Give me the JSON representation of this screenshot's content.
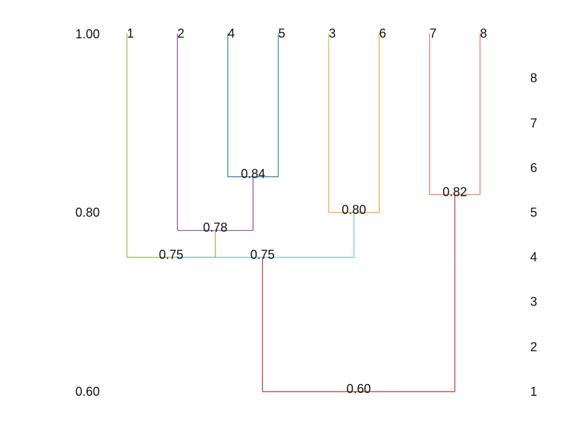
{
  "chart_data": {
    "type": "dendrogram",
    "similarity_axis": {
      "tick_labels": [
        "1.00",
        "0.80",
        "0.60"
      ],
      "ticks": [
        1.0,
        0.8,
        0.6
      ],
      "range": [
        0.6,
        1.0
      ]
    },
    "cluster_count_axis": {
      "tick_labels": [
        "8",
        "7",
        "6",
        "5",
        "4",
        "3",
        "2",
        "1"
      ]
    },
    "leaves": [
      {
        "id": "1",
        "label": "1"
      },
      {
        "id": "2",
        "label": "2"
      },
      {
        "id": "4",
        "label": "4"
      },
      {
        "id": "5",
        "label": "5"
      },
      {
        "id": "3",
        "label": "3"
      },
      {
        "id": "6",
        "label": "6"
      },
      {
        "id": "7",
        "label": "7"
      },
      {
        "id": "8",
        "label": "8"
      }
    ],
    "merges": [
      {
        "id": "m45",
        "left": "4",
        "right": "5",
        "similarity": 0.84,
        "label": "0.84",
        "color": "#2a7db8"
      },
      {
        "id": "m78",
        "left": "7",
        "right": "8",
        "similarity": 0.82,
        "label": "0.82",
        "color": "#e8735a"
      },
      {
        "id": "m36",
        "left": "3",
        "right": "6",
        "similarity": 0.8,
        "label": "0.80",
        "color": "#f0a830"
      },
      {
        "id": "m245",
        "left": "2",
        "right": "m45",
        "similarity": 0.78,
        "label": "0.78",
        "color": "#8e44ad"
      },
      {
        "id": "m1245",
        "left": "1",
        "right": "m245",
        "similarity": 0.75,
        "label": "0.75",
        "color": "#8fbf3a"
      },
      {
        "id": "m124536",
        "left": "m1245",
        "right": "m36",
        "similarity": 0.75,
        "label": "0.75",
        "color": "#6cc6e0"
      },
      {
        "id": "mall",
        "left": "m124536",
        "right": "m78",
        "similarity": 0.6,
        "label": "0.60",
        "color": "#b5343c"
      }
    ]
  }
}
